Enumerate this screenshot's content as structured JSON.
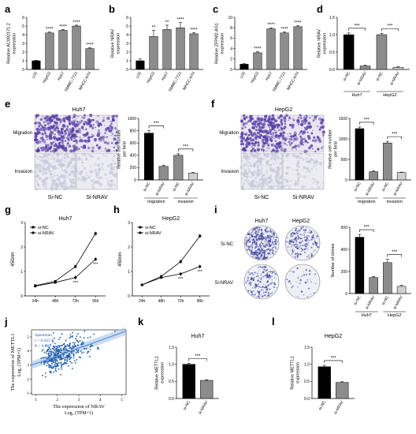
{
  "colors": {
    "black": "#000000",
    "gray": "#8c8c8c",
    "lightgray": "#d0d0d0",
    "scatter_dot": "#1f5aa6",
    "regression": "#5b8fd0",
    "stain": "#5a3fa6",
    "pale_stain": "#c9c9dd"
  },
  "panel_labels": [
    "a",
    "b",
    "c",
    "d",
    "e",
    "f",
    "g",
    "h",
    "i",
    "j",
    "k",
    "l"
  ],
  "chart_data": [
    {
      "id": "a",
      "type": "bar",
      "ylabel": "Relative AC092171.2\nexpression",
      "yticks": [
        "0",
        "1",
        "2",
        "3",
        "4",
        "5",
        "6"
      ],
      "ylim": [
        0,
        6
      ],
      "categories": [
        "L02",
        "HepG2",
        "Huh7",
        "SMMC-7721",
        "MHCC-97H"
      ],
      "values": [
        1.0,
        4.2,
        4.5,
        5.0,
        2.4
      ],
      "errors": [
        0.05,
        0.1,
        0.1,
        0.1,
        0.1
      ],
      "sig": [
        "",
        "****",
        "****",
        "****",
        "****"
      ]
    },
    {
      "id": "b",
      "type": "bar",
      "ylabel": "Relative NRAV\nexpression",
      "yticks": [
        "0",
        "1",
        "2",
        "3",
        "4",
        "5",
        "6"
      ],
      "ylim": [
        0,
        6
      ],
      "categories": [
        "L02",
        "HepG2",
        "Huh7",
        "SMMC-7721",
        "MHCC-97H"
      ],
      "values": [
        1.0,
        3.8,
        4.6,
        4.8,
        4.1
      ],
      "errors": [
        0.2,
        0.7,
        0.5,
        0.6,
        0.15
      ],
      "sig": [
        "",
        "**",
        "**",
        "****",
        "****"
      ]
    },
    {
      "id": "c",
      "type": "bar",
      "ylabel": "Relative ZFPM2-AS1\nexpression",
      "yticks": [
        "0",
        "2",
        "4",
        "6",
        "8",
        "10"
      ],
      "ylim": [
        0,
        10
      ],
      "categories": [
        "L02",
        "HepG2",
        "Huh7",
        "SMMC-7721",
        "MHCC-97H"
      ],
      "values": [
        1.0,
        3.2,
        7.8,
        7.0,
        8.2
      ],
      "errors": [
        0.1,
        0.2,
        0.2,
        0.2,
        0.2
      ],
      "sig": [
        "",
        "****",
        "****",
        "****",
        "****"
      ]
    },
    {
      "id": "d",
      "type": "bar",
      "ylabel": "Relative NRAV\nexpression",
      "yticks": [
        "0.0",
        "0.5",
        "1.0",
        "1.5"
      ],
      "ylim": [
        0,
        1.5
      ],
      "categories": [
        "si-NC",
        "si-NRAV",
        "si-NC",
        "si-NRAV"
      ],
      "values": [
        1.0,
        0.1,
        1.0,
        0.06
      ],
      "errors": [
        0.05,
        0.02,
        0.04,
        0.02
      ],
      "bar_colors": [
        "black",
        "gray",
        "gray",
        "lightgray"
      ],
      "groups": [
        "Huh7",
        "HepG2"
      ],
      "sig": [
        "***",
        "***"
      ]
    },
    {
      "id": "e",
      "type": "bar",
      "title": "Huh7",
      "row_labels": [
        "Migration",
        "Invasion"
      ],
      "col_labels": [
        "Si-NC",
        "Si-NRAV"
      ],
      "ylabel": "Relative cell number\nper field",
      "yticks": [
        "0",
        "200",
        "400",
        "600",
        "800",
        "1000"
      ],
      "ylim": [
        0,
        1000
      ],
      "categories": [
        "si-NC",
        "si-NRAV",
        "si-NC",
        "si-NRAV"
      ],
      "values": [
        760,
        220,
        400,
        110
      ],
      "errors": [
        40,
        20,
        25,
        10
      ],
      "bar_colors": [
        "black",
        "gray",
        "gray",
        "lightgray"
      ],
      "groups": [
        "migration",
        "invasion"
      ],
      "sig": [
        "***",
        "***"
      ]
    },
    {
      "id": "f",
      "type": "bar",
      "title": "HepG2",
      "row_labels": [
        "Migration",
        "Invasion"
      ],
      "col_labels": [
        "Si-NC",
        "Si-NRAV"
      ],
      "ylabel": "Relative cell number\nper field",
      "yticks": [
        "0",
        "500",
        "1000",
        "1500"
      ],
      "ylim": [
        0,
        1500
      ],
      "categories": [
        "si-NC",
        "si-NRAV",
        "si-NC",
        "si-NRAV"
      ],
      "values": [
        1250,
        200,
        900,
        180
      ],
      "errors": [
        40,
        20,
        40,
        10
      ],
      "bar_colors": [
        "black",
        "gray",
        "gray",
        "lightgray"
      ],
      "groups": [
        "migration",
        "invasion"
      ],
      "sig": [
        "***",
        "***"
      ]
    },
    {
      "id": "g",
      "type": "line",
      "title": "Huh7",
      "ylabel": "450nm",
      "yticks": [
        "0",
        "1",
        "2",
        "3"
      ],
      "ylim": [
        0,
        3
      ],
      "x": [
        "24h",
        "48h",
        "72h",
        "96h"
      ],
      "series": [
        {
          "name": "si-NC",
          "values": [
            0.42,
            0.6,
            1.2,
            2.55
          ],
          "marker": "square"
        },
        {
          "name": "si-NRAV",
          "values": [
            0.4,
            0.55,
            0.75,
            1.5
          ],
          "marker": "circle"
        }
      ],
      "sig": [
        "",
        "",
        "***",
        "***"
      ]
    },
    {
      "id": "h",
      "type": "line",
      "title": "HepG2",
      "ylabel": "450nm",
      "yticks": [
        "0",
        "1",
        "2",
        "3"
      ],
      "ylim": [
        0,
        3
      ],
      "x": [
        "24h",
        "48h",
        "72h",
        "96h"
      ],
      "series": [
        {
          "name": "si-NC",
          "values": [
            0.45,
            0.8,
            1.4,
            2.45
          ],
          "marker": "square"
        },
        {
          "name": "si-NRAV",
          "values": [
            0.45,
            0.75,
            0.9,
            1.2
          ],
          "marker": "circle"
        }
      ],
      "sig": [
        "",
        "",
        "***",
        "***"
      ]
    },
    {
      "id": "i",
      "type": "bar",
      "plate_cols": [
        "Huh7",
        "HepG2"
      ],
      "row_labels": [
        "Si-NC",
        "Si-NRAV"
      ],
      "ylabel": "Number of clones",
      "yticks": [
        "0",
        "200",
        "400",
        "600"
      ],
      "ylim": [
        0,
        600
      ],
      "categories": [
        "si-NC",
        "si-NRAV",
        "si-NC",
        "si-NRAV"
      ],
      "values": [
        510,
        145,
        280,
        65
      ],
      "errors": [
        25,
        10,
        30,
        10
      ],
      "bar_colors": [
        "black",
        "gray",
        "gray",
        "lightgray"
      ],
      "groups": [
        "Huh7",
        "HepG2"
      ],
      "sig": [
        "***",
        "***"
      ]
    },
    {
      "id": "j",
      "type": "scatter",
      "ylabel_main": "The expression of METTL1",
      "ylabel_sub": "Log₂ (TPM+1)",
      "xlabel_main": "The expression of NRAV",
      "xlabel_sub": "Log₂ (TPM+1)",
      "xticks": [
        "1",
        "2",
        "3",
        "4",
        "5"
      ],
      "xlim": [
        0.8,
        5.2
      ],
      "yticks": [
        "1",
        "2",
        "3",
        "4",
        "5"
      ],
      "ylim": [
        0.9,
        5.5
      ],
      "stats": [
        "Spearman",
        "r = 0.455",
        "P < 0.001"
      ],
      "fit": {
        "slope": 0.55,
        "intercept": 2.55
      }
    },
    {
      "id": "k",
      "type": "bar",
      "title": "Huh7",
      "ylabel": "Relative METTL1\nexpression",
      "yticks": [
        "0.0",
        "0.5",
        "1.0",
        "1.5"
      ],
      "ylim": [
        0,
        1.5
      ],
      "categories": [
        "si-NC",
        "si-NRAV"
      ],
      "values": [
        1.0,
        0.53
      ],
      "errors": [
        0.03,
        0.02
      ],
      "bar_colors": [
        "black",
        "gray"
      ],
      "sig": [
        "***"
      ]
    },
    {
      "id": "l",
      "type": "bar",
      "title": "HepG2",
      "ylabel": "Relative METTL1\nexpression",
      "yticks": [
        "0.0",
        "0.5",
        "1.0",
        "1.5"
      ],
      "ylim": [
        0,
        1.5
      ],
      "categories": [
        "si-NC",
        "si-NRAV"
      ],
      "values": [
        0.93,
        0.47
      ],
      "errors": [
        0.04,
        0.02
      ],
      "bar_colors": [
        "black",
        "gray"
      ],
      "sig": [
        "***"
      ]
    }
  ]
}
